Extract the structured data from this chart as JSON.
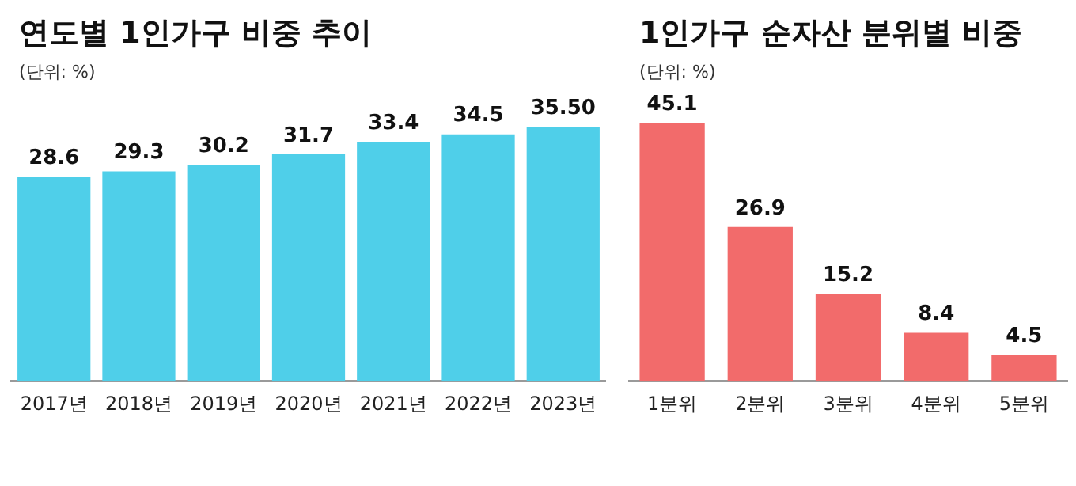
{
  "chart_data": [
    {
      "type": "bar",
      "title": "연도별 1인가구 비중 추이",
      "subtitle": "(단위: %)",
      "categories": [
        "2017년",
        "2018년",
        "2019년",
        "2020년",
        "2021년",
        "2022년",
        "2023년"
      ],
      "values": [
        28.6,
        29.3,
        30.2,
        31.7,
        33.4,
        34.5,
        35.5
      ],
      "value_labels": [
        "28.6",
        "29.3",
        "30.2",
        "31.7",
        "33.4",
        "34.5",
        "35.50"
      ],
      "color": "#4fcfe9",
      "grid": false,
      "legend": false
    },
    {
      "type": "bar",
      "title": "1인가구 순자산 분위별 비중",
      "subtitle": "(단위: %)",
      "categories": [
        "1분위",
        "2분위",
        "3분위",
        "4분위",
        "5분위"
      ],
      "values": [
        45.1,
        26.9,
        15.2,
        8.4,
        4.5
      ],
      "data_labels": true,
      "color": "#f26b6b",
      "grid": false,
      "legend": false
    }
  ]
}
